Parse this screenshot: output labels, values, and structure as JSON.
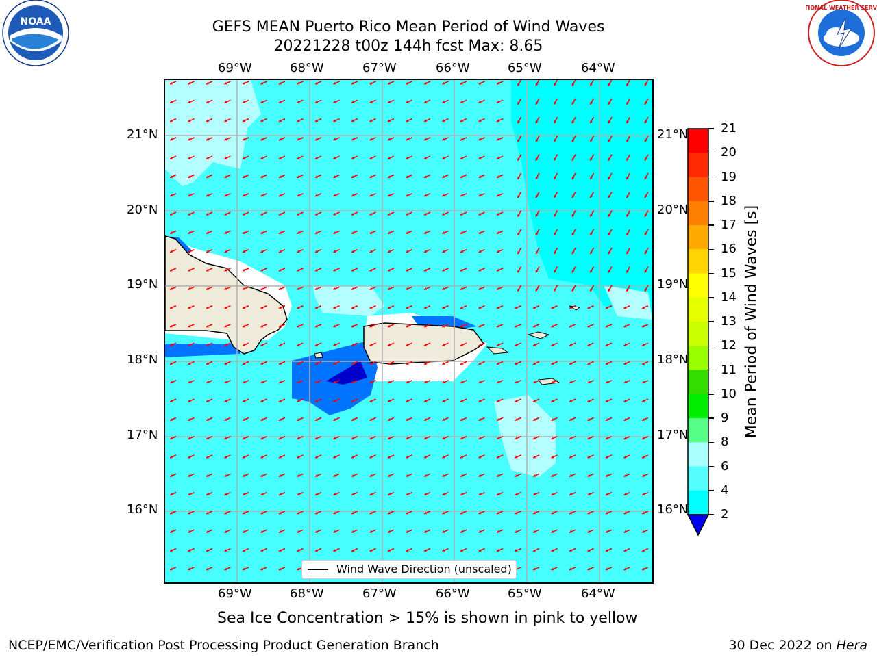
{
  "title": {
    "line1": "GEFS MEAN Puerto Rico Mean Period of Wind Waves",
    "line2": "20221228 t00z 144h fcst   Max: 8.65"
  },
  "logos": {
    "left": {
      "name": "noaa-logo",
      "text": "NOAA"
    },
    "right": {
      "name": "nws-logo",
      "text": "NATIONAL WEATHER SERVICE"
    }
  },
  "map": {
    "lon_labels": [
      "69°W",
      "68°W",
      "67°W",
      "66°W",
      "65°W",
      "64°W"
    ],
    "lat_labels": [
      "21°N",
      "20°N",
      "19°N",
      "18°N",
      "17°N",
      "16°N"
    ],
    "legend": "Wind Wave Direction (unscaled)",
    "colors": {
      "ocean_light": "#00ffff",
      "ocean_mid": "#47ffff",
      "ocean_pale": "#b3ffff",
      "wave_blue": "#0073ff",
      "wave_dark": "#0000cd",
      "land": "#efebdb",
      "arrow": "#ff0000"
    }
  },
  "colorbar": {
    "label": "Mean Period of Wind Waves [s]",
    "ticks": [
      "21",
      "20",
      "19",
      "18",
      "17",
      "16",
      "15",
      "14",
      "13",
      "12",
      "11",
      "10",
      "9",
      "8",
      "6",
      "4",
      "2"
    ],
    "colors": [
      "#ff0000",
      "#ff2a00",
      "#ff5500",
      "#ff8000",
      "#ffaa00",
      "#ffd400",
      "#ffff00",
      "#e6ff00",
      "#ccff00",
      "#99ff00",
      "#33dd00",
      "#00ee00",
      "#55ff88",
      "#aaffff",
      "#55ffff",
      "#00ffff",
      "#0073ff",
      "#0000ee"
    ]
  },
  "note": "Sea Ice Concentration > 15% is shown in pink to yellow",
  "footer": {
    "left": "NCEP/EMC/Verification Post Processing Product Generation Branch",
    "right_prefix": "30 Dec 2022 on ",
    "right_host": "Hera"
  }
}
